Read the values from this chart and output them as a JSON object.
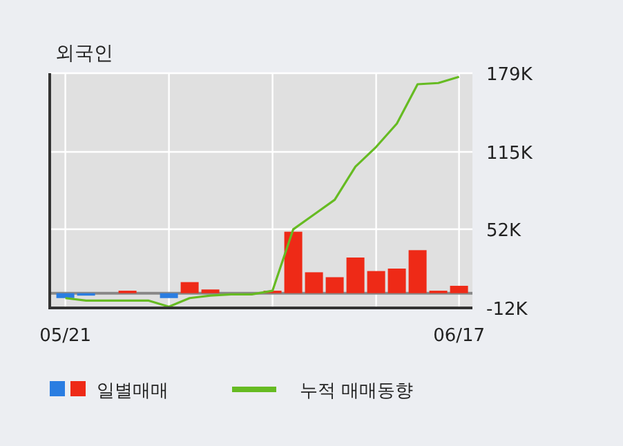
{
  "chart_data": {
    "type": "bar",
    "title": "외국인",
    "categories": [
      "05/21",
      null,
      null,
      null,
      null,
      null,
      null,
      null,
      null,
      null,
      null,
      null,
      null,
      null,
      null,
      null,
      null,
      null,
      null,
      "06/17"
    ],
    "series": [
      {
        "name": "일별매매",
        "values": [
          -4000,
          -2000,
          0,
          2000,
          0,
          -4000,
          9000,
          3000,
          0,
          0,
          2000,
          50000,
          17000,
          13000,
          29000,
          18000,
          20000,
          35000,
          2000,
          6000
        ],
        "colors": [
          "#2a7de1",
          "#2a7de1",
          "#ee2a17",
          "#ee2a17",
          "#ee2a17",
          "#2a7de1",
          "#ee2a17",
          "#ee2a17",
          "#ee2a17",
          "#ee2a17",
          "#ee2a17",
          "#ee2a17",
          "#ee2a17",
          "#ee2a17",
          "#ee2a17",
          "#ee2a17",
          "#ee2a17",
          "#ee2a17",
          "#ee2a17",
          "#ee2a17"
        ]
      },
      {
        "name": "누적 매매동향",
        "type": "line",
        "color": "#66bb22",
        "values": [
          -4000,
          -6000,
          -6000,
          -6000,
          -6000,
          -11000,
          -4000,
          -2000,
          -1000,
          -1000,
          2000,
          52000,
          64000,
          76000,
          103000,
          119000,
          138000,
          170000,
          171000,
          176000
        ]
      }
    ],
    "ylim": [
      -12000,
      179000
    ],
    "yticks": [
      {
        "value": -12000,
        "label": "-12K"
      },
      {
        "value": 52000,
        "label": "52K"
      },
      {
        "value": 115000,
        "label": "115K"
      },
      {
        "value": 179000,
        "label": "179K"
      }
    ],
    "grid": true,
    "legend": "bottom"
  }
}
